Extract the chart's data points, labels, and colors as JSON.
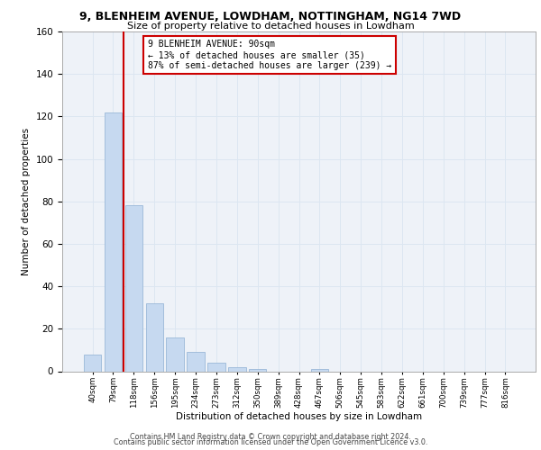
{
  "title1": "9, BLENHEIM AVENUE, LOWDHAM, NOTTINGHAM, NG14 7WD",
  "title2": "Size of property relative to detached houses in Lowdham",
  "xlabel": "Distribution of detached houses by size in Lowdham",
  "ylabel": "Number of detached properties",
  "categories": [
    "40sqm",
    "79sqm",
    "118sqm",
    "156sqm",
    "195sqm",
    "234sqm",
    "273sqm",
    "312sqm",
    "350sqm",
    "389sqm",
    "428sqm",
    "467sqm",
    "506sqm",
    "545sqm",
    "583sqm",
    "622sqm",
    "661sqm",
    "700sqm",
    "739sqm",
    "777sqm",
    "816sqm"
  ],
  "values": [
    8,
    122,
    78,
    32,
    16,
    9,
    4,
    2,
    1,
    0,
    0,
    1,
    0,
    0,
    0,
    0,
    0,
    0,
    0,
    0,
    0
  ],
  "bar_color": "#c6d9f0",
  "bar_edge_color": "#9ab8d8",
  "property_line_color": "#cc0000",
  "property_line_x": 1.5,
  "annotation_text1": "9 BLENHEIM AVENUE: 90sqm",
  "annotation_text2": "← 13% of detached houses are smaller (35)",
  "annotation_text3": "87% of semi-detached houses are larger (239) →",
  "annotation_box_facecolor": "#ffffff",
  "annotation_box_edgecolor": "#cc0000",
  "ylim": [
    0,
    160
  ],
  "yticks": [
    0,
    20,
    40,
    60,
    80,
    100,
    120,
    140,
    160
  ],
  "footer1": "Contains HM Land Registry data © Crown copyright and database right 2024.",
  "footer2": "Contains public sector information licensed under the Open Government Licence v3.0.",
  "grid_color": "#dce6f1",
  "bg_color": "#eef2f8",
  "fig_bg_color": "#ffffff",
  "title1_fontsize": 9.0,
  "title2_fontsize": 8.0,
  "ylabel_fontsize": 7.5,
  "xlabel_fontsize": 7.5,
  "ytick_fontsize": 7.5,
  "xtick_fontsize": 6.2,
  "footer_fontsize": 5.8,
  "ann_fontsize": 7.0
}
